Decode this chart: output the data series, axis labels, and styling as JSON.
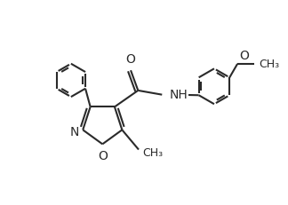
{
  "bg_color": "#ffffff",
  "line_color": "#2a2a2a",
  "bond_lw": 1.5,
  "font_size": 10,
  "figsize": [
    3.24,
    2.32
  ],
  "dpi": 100,
  "xlim": [
    0,
    10
  ],
  "ylim": [
    0,
    7.2
  ]
}
